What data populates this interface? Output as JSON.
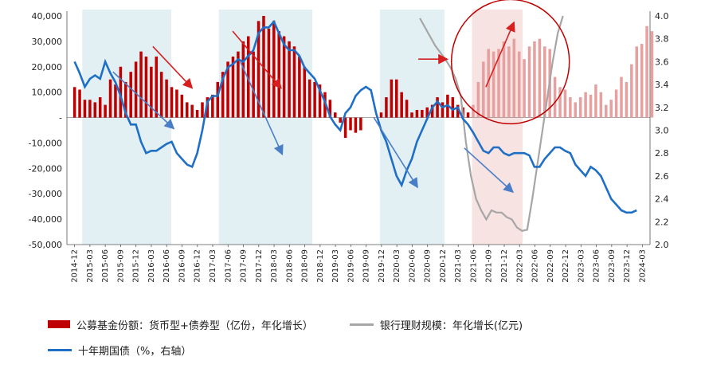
{
  "chart_data": {
    "type": "bar+line",
    "title": "",
    "colors": {
      "bar": "#c00000",
      "bar_light": "#e7a0a0",
      "bank": "#a6a6a6",
      "bond": "#1f6fc6",
      "bond_light": "#7fb3e6",
      "shade_blue": "#e2f0f4",
      "shade_pink": "#f8e3e3",
      "arrow_red": "#d62020",
      "arrow_blue": "#4a7ec7",
      "circle": "#c00000"
    },
    "y_left": {
      "ticks": [
        "40,000",
        "30,000",
        "20,000",
        "10,000",
        "-",
        "-10,000",
        "-20,000",
        "-30,000",
        "-40,000",
        "-50,000"
      ],
      "range": [
        -50000,
        40000
      ]
    },
    "y_right": {
      "ticks": [
        "4.0",
        "3.8",
        "3.6",
        "3.4",
        "3.2",
        "3.0",
        "2.8",
        "2.6",
        "2.4",
        "2.2",
        "2.0"
      ],
      "range": [
        2.0,
        4.0
      ]
    },
    "x_ticks": [
      "2014-12",
      "2015-03",
      "2015-06",
      "2015-09",
      "2015-12",
      "2016-03",
      "2016-06",
      "2016-09",
      "2016-12",
      "2017-03",
      "2017-06",
      "2017-09",
      "2017-12",
      "2018-03",
      "2018-06",
      "2018-09",
      "2018-12",
      "2019-03",
      "2019-06",
      "2019-09",
      "2019-12",
      "2020-03",
      "2020-06",
      "2020-09",
      "2020-12",
      "2021-03",
      "2021-06",
      "2021-09",
      "2021-12",
      "2022-03",
      "2022-06",
      "2022-09",
      "2022-12",
      "2023-03",
      "2023-06",
      "2023-09",
      "2023-12",
      "2024-03"
    ],
    "shaded_periods": [
      {
        "start": 0.5,
        "end": 6.3,
        "style": "blue"
      },
      {
        "start": 9.4,
        "end": 15.5,
        "style": "blue"
      },
      {
        "start": 19.9,
        "end": 24.1,
        "style": "blue"
      },
      {
        "start": 25.9,
        "end": 29.2,
        "style": "pink"
      }
    ],
    "series": [
      {
        "name": "公募基金份额：货币型+债券型（亿份，年化增长）",
        "type": "bar",
        "axis": "left",
        "start": 0,
        "step": 0.333,
        "values": [
          12000,
          11000,
          7000,
          7000,
          6000,
          8000,
          5000,
          15000,
          13000,
          20000,
          14000,
          18000,
          22000,
          26000,
          24000,
          20000,
          24000,
          18000,
          15000,
          12000,
          11000,
          9000,
          6000,
          5000,
          3000,
          6000,
          8000,
          9000,
          14000,
          18000,
          22000,
          24000,
          26000,
          30000,
          32000,
          26000,
          38000,
          40000,
          35000,
          38000,
          34000,
          32000,
          30000,
          28000,
          24000,
          20000,
          15000,
          14000,
          13000,
          10000,
          7000,
          2000,
          -2000,
          -8000,
          -5000,
          -6000,
          -5000,
          0,
          0,
          0,
          2000,
          8000,
          15000,
          15000,
          10000,
          7000,
          2000,
          3000,
          3000,
          4000,
          5000,
          8000,
          6000,
          9000,
          8000,
          5000,
          4000,
          2000,
          5000,
          14000,
          22000,
          27000,
          26000,
          27000,
          30000,
          28000,
          31000,
          26000,
          23000,
          28000,
          30000,
          31000,
          28000,
          27000,
          16000,
          12000,
          11000,
          8000,
          6000,
          8000,
          10000,
          9000,
          13000,
          10000,
          5000,
          7000,
          11000,
          16000,
          14000,
          21000,
          28000,
          29000,
          36000,
          34000
        ]
      },
      {
        "name": "银行理财规模：年化增长(亿元)",
        "type": "line",
        "axis": "right",
        "start": 22.5,
        "step": 0.333,
        "values": [
          3.98,
          3.9,
          3.82,
          3.74,
          3.68,
          3.62,
          3.55,
          3.45,
          3.3,
          2.9,
          2.6,
          2.4,
          2.3,
          2.22,
          2.3,
          2.28,
          2.28,
          2.24,
          2.22,
          2.15,
          2.12,
          2.13,
          2.4,
          2.7,
          3.0,
          3.3,
          3.6,
          3.85,
          4.0
        ]
      },
      {
        "name": "十年期国债（%，右轴）",
        "type": "line",
        "axis": "right",
        "start": 0,
        "step": 0.333,
        "values": [
          3.6,
          3.5,
          3.38,
          3.45,
          3.48,
          3.45,
          3.6,
          3.5,
          3.42,
          3.3,
          3.15,
          3.05,
          3.05,
          2.9,
          2.8,
          2.82,
          2.82,
          2.85,
          2.88,
          2.9,
          2.8,
          2.75,
          2.7,
          2.68,
          2.8,
          3.0,
          3.25,
          3.3,
          3.3,
          3.45,
          3.55,
          3.58,
          3.62,
          3.6,
          3.65,
          3.7,
          3.85,
          3.9,
          3.9,
          3.95,
          3.85,
          3.75,
          3.7,
          3.7,
          3.65,
          3.55,
          3.5,
          3.45,
          3.35,
          3.25,
          3.12,
          3.05,
          3.0,
          3.15,
          3.2,
          3.3,
          3.35,
          3.38,
          3.35,
          3.15,
          3.0,
          2.9,
          2.75,
          2.6,
          2.52,
          2.65,
          2.75,
          2.9,
          3.0,
          3.1,
          3.2,
          3.25,
          3.2,
          3.22,
          3.18,
          3.2,
          3.1,
          3.05,
          2.98,
          2.9,
          2.82,
          2.8,
          2.85,
          2.85,
          2.8,
          2.78,
          2.8,
          2.8,
          2.8,
          2.78,
          2.68,
          2.68,
          2.75,
          2.8,
          2.85,
          2.85,
          2.82,
          2.8,
          2.7,
          2.65,
          2.6,
          2.68,
          2.65,
          2.6,
          2.5,
          2.4,
          2.35,
          2.3,
          2.28,
          2.28,
          2.3
        ]
      }
    ],
    "arrows": [
      {
        "color": "red",
        "x1": 5.1,
        "y1": 28000,
        "x2": 7.6,
        "y2": 12000
      },
      {
        "color": "red",
        "x1": 10.3,
        "y1": 34000,
        "x2": 13.4,
        "y2": 12000
      },
      {
        "color": "red",
        "x1": 22.4,
        "y1": 23000,
        "x2": 24.2,
        "y2": 23000
      },
      {
        "color": "red",
        "x1": 26.8,
        "y1": 12000,
        "x2": 28.6,
        "y2": 37000
      },
      {
        "color": "blue",
        "x1": 2.5,
        "y1": 18000,
        "x2": 6.4,
        "y2": -4000
      },
      {
        "color": "blue",
        "x1": 10.8,
        "y1": 22000,
        "x2": 13.5,
        "y2": -14000
      },
      {
        "color": "blue",
        "x1": 19.5,
        "y1": 0,
        "x2": 22.3,
        "y2": -27000
      },
      {
        "color": "blue",
        "x1": 25.4,
        "y1": -12000,
        "x2": 28.5,
        "y2": -29000
      }
    ],
    "circle_highlight": {
      "x": 28.4,
      "y": 22000
    },
    "legend": {
      "bar_label": "公募基金份额：货币型+债券型（亿份，年化增长）",
      "bank_label": "银行理财规模：年化增长(亿元)",
      "bond_label": "十年期国债（%，右轴）"
    }
  }
}
